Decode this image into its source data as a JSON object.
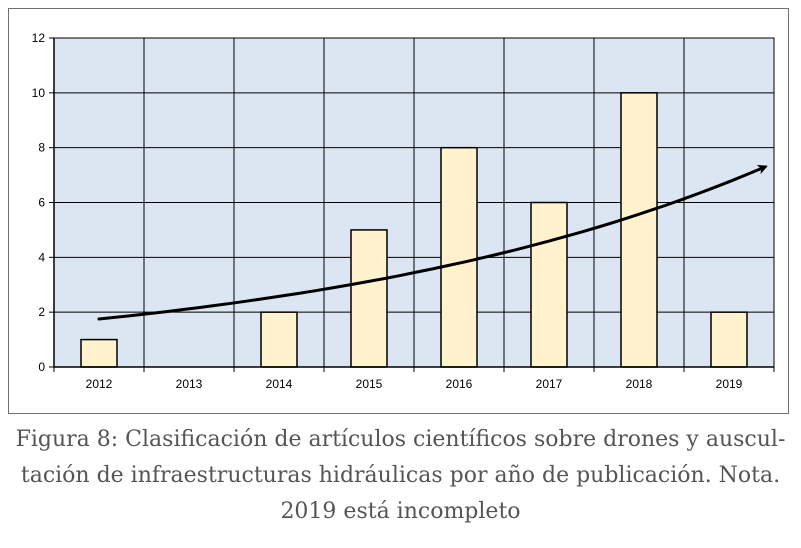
{
  "chart_data": {
    "type": "bar",
    "title": "",
    "xlabel": "",
    "ylabel": "",
    "categories": [
      "2012",
      "2013",
      "2014",
      "2015",
      "2016",
      "2017",
      "2018",
      "2019"
    ],
    "values": [
      1,
      0,
      2,
      5,
      8,
      6,
      10,
      2
    ],
    "ylim": [
      0,
      12
    ],
    "yticks": [
      0,
      2,
      4,
      6,
      8,
      10,
      12
    ],
    "grid": true,
    "legend": "none",
    "trend": {
      "type": "exponential",
      "arrow": true,
      "start": 1.75,
      "end": 7.3
    },
    "colors": {
      "bar_fill": "#fff2cc",
      "bar_stroke": "#000000",
      "plot_bg": "#dce6f2",
      "grid": "#000000",
      "trend": "#000000"
    }
  },
  "caption": {
    "lines": [
      "Figura 8: Clasificación de artículos científicos sobre drones y auscul-",
      "tación de infraestructuras hidráulicas por año de publicación. Nota.",
      "2019 está incompleto"
    ]
  }
}
